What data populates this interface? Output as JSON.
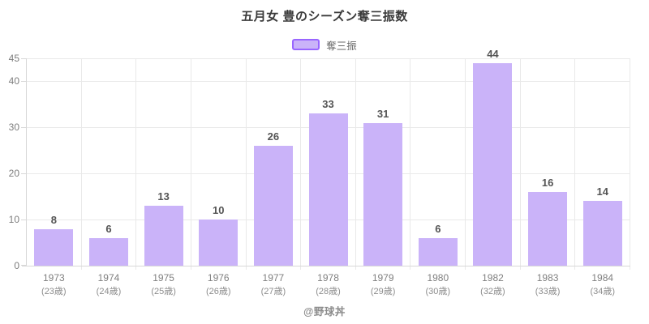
{
  "title": "五月女 豊のシーズン奪三振数",
  "legend": {
    "label": "奪三振"
  },
  "watermark": "@野球丼",
  "colors": {
    "bar_fill": "#cab3f9",
    "legend_border": "#9966ff",
    "grid_line": "#e9e9e9",
    "axis_line": "#d8d8d8",
    "title_text": "#3a3a3a",
    "value_label_text": "#545454",
    "y_tick_text": "#7d7d7d",
    "year_text": "#7f7f7f",
    "age_text": "#8d8d8d",
    "legend_text": "#696969",
    "watermark_text": "#8c8c8c"
  },
  "chart_data": {
    "type": "bar",
    "title": "五月女 豊のシーズン奪三振数",
    "series": [
      {
        "name": "奪三振",
        "values": [
          8,
          6,
          13,
          10,
          26,
          33,
          31,
          6,
          44,
          16,
          14
        ]
      }
    ],
    "categories": [
      {
        "year": "1973",
        "age": "(23歳)"
      },
      {
        "year": "1974",
        "age": "(24歳)"
      },
      {
        "year": "1975",
        "age": "(25歳)"
      },
      {
        "year": "1976",
        "age": "(26歳)"
      },
      {
        "year": "1977",
        "age": "(27歳)"
      },
      {
        "year": "1978",
        "age": "(28歳)"
      },
      {
        "year": "1979",
        "age": "(29歳)"
      },
      {
        "year": "1980",
        "age": "(30歳)"
      },
      {
        "year": "1982",
        "age": "(32歳)"
      },
      {
        "year": "1983",
        "age": "(33歳)"
      },
      {
        "year": "1984",
        "age": "(34歳)"
      }
    ],
    "y_ticks": [
      0,
      10,
      20,
      30,
      40,
      45
    ],
    "ylim": [
      0,
      45
    ],
    "grid": true,
    "legend_position": "top",
    "value_labels": true
  }
}
